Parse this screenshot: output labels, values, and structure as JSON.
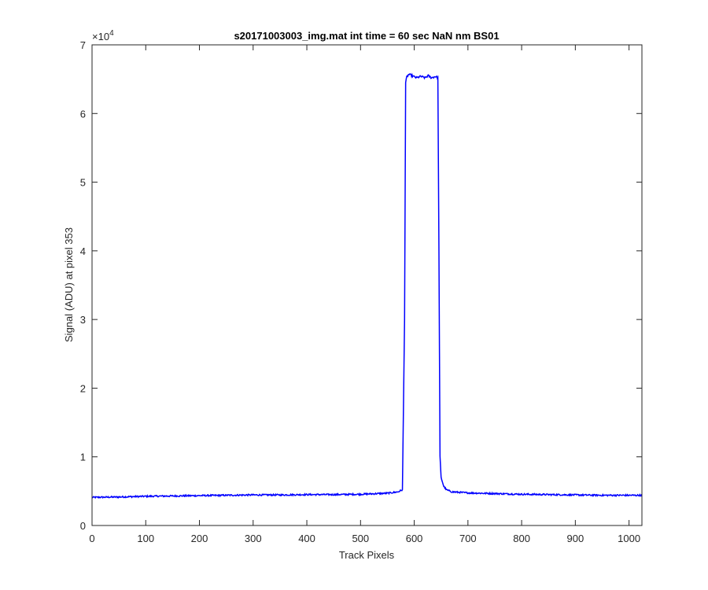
{
  "chart_data": {
    "type": "line",
    "title": "s20171003003_img.mat int time = 60 sec  NaN nm BS01",
    "xlabel": "Track Pixels",
    "ylabel": "Signal (ADU) at pixel 353",
    "xlim": [
      0,
      1024
    ],
    "ylim": [
      0,
      70000
    ],
    "x_ticks": [
      0,
      100,
      200,
      300,
      400,
      500,
      600,
      700,
      800,
      900,
      1000
    ],
    "y_ticks": [
      0,
      10000,
      20000,
      30000,
      40000,
      50000,
      60000,
      70000
    ],
    "x_tick_labels": [
      "0",
      "100",
      "200",
      "300",
      "400",
      "500",
      "600",
      "700",
      "800",
      "900",
      "1000"
    ],
    "y_tick_labels": [
      "0",
      "1",
      "2",
      "3",
      "4",
      "5",
      "6",
      "7"
    ],
    "y_exponent_label": "×10",
    "y_exponent_power": "4",
    "grid": false,
    "legend": "none",
    "series_color": "#0000ff",
    "series": [
      {
        "x": [
          0,
          50,
          100,
          150,
          200,
          250,
          300,
          350,
          400,
          450,
          500,
          550,
          570,
          578,
          582,
          584,
          586,
          590,
          596,
          604,
          612,
          620,
          626,
          632,
          640,
          644,
          646,
          648,
          650,
          655,
          660,
          670,
          700,
          750,
          800,
          850,
          900,
          950,
          1000,
          1024
        ],
        "y": [
          4100,
          4150,
          4250,
          4300,
          4350,
          4400,
          4450,
          4450,
          4500,
          4500,
          4550,
          4700,
          4900,
          5200,
          30000,
          64500,
          65300,
          65700,
          65500,
          65200,
          65400,
          65200,
          65500,
          65200,
          65400,
          65200,
          40000,
          10000,
          7000,
          5700,
          5200,
          4900,
          4750,
          4650,
          4550,
          4500,
          4450,
          4400,
          4400,
          4400
        ]
      }
    ]
  }
}
